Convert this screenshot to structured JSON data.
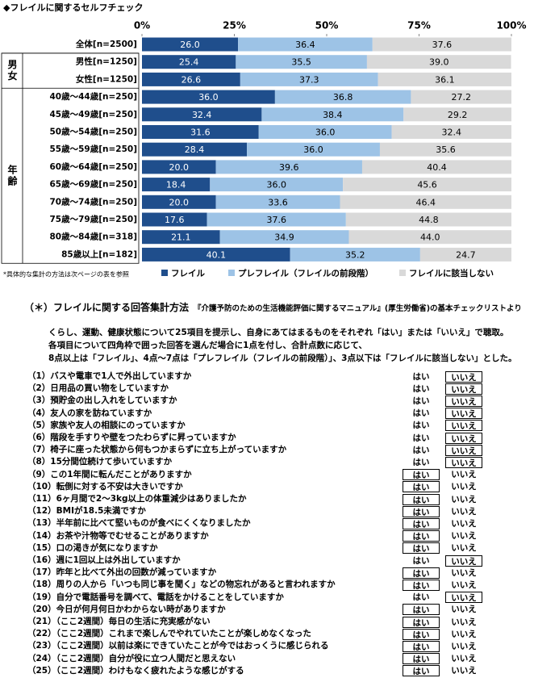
{
  "chart_data": {
    "type": "stacked-bar-horizontal",
    "title": "◆フレイルに関するセルフチェック",
    "categories": [
      "全体[n=2500]",
      "男性[n=1250]",
      "女性[n=1250]",
      "40歳～44歳[n=250]",
      "45歳～49歳[n=250]",
      "50歳～54歳[n=250]",
      "55歳～59歳[n=250]",
      "60歳～64歳[n=250]",
      "65歳～69歳[n=250]",
      "70歳～74歳[n=250]",
      "75歳～79歳[n=250]",
      "80歳～84歳[n=318]",
      "85歳以上[n=182]"
    ],
    "groups": [
      {
        "label": "男女",
        "first": 1,
        "last": 2
      },
      {
        "label": "年齢",
        "first": 3,
        "last": 12
      }
    ],
    "series": [
      {
        "name": "フレイル",
        "color": "#1f4e8c",
        "label_color": "#ffffff",
        "values": [
          26.0,
          25.4,
          26.6,
          36.0,
          32.4,
          31.6,
          28.4,
          20.0,
          18.4,
          20.0,
          17.6,
          21.1,
          40.1
        ],
        "value_labels": [
          "26.0",
          "25.4",
          "26.6",
          "36.0",
          "32.4",
          "31.6",
          "28.4",
          "20.0",
          "18.4",
          "20.0",
          "17.6",
          "21.1",
          "40.1"
        ]
      },
      {
        "name": "プレフレイル（フレイルの前段階）",
        "color": "#9dc3e6",
        "label_color": "#000000",
        "values": [
          36.4,
          35.5,
          37.3,
          36.8,
          38.4,
          36.0,
          36.0,
          39.6,
          36.0,
          33.6,
          37.6,
          34.9,
          35.2
        ],
        "value_labels": [
          "36.4",
          "35.5",
          "37.3",
          "36.8",
          "38.4",
          "36.0",
          "36.0",
          "39.6",
          "36.0",
          "33.6",
          "37.6",
          "34.9",
          "35.2"
        ]
      },
      {
        "name": "フレイルに該当しない",
        "color": "#d9d9d9",
        "label_color": "#000000",
        "values": [
          37.6,
          39.0,
          36.1,
          27.2,
          29.2,
          32.4,
          35.6,
          40.4,
          45.6,
          46.4,
          44.8,
          44.0,
          24.7
        ],
        "value_labels": [
          "37.6",
          "39.0",
          "36.1",
          "27.2",
          "29.2",
          "32.4",
          "35.6",
          "40.4",
          "45.6",
          "46.4",
          "44.8",
          "44.0",
          "24.7"
        ]
      }
    ],
    "xlim": [
      0,
      100
    ],
    "xticks": [
      {
        "value": 0,
        "label": "0%"
      },
      {
        "value": 25,
        "label": "25%"
      },
      {
        "value": 50,
        "label": "50%"
      },
      {
        "value": 75,
        "label": "75%"
      },
      {
        "value": 100,
        "label": "100%"
      }
    ],
    "footnote": "*具体的な集計の方法は次ページの表を参照"
  },
  "method": {
    "title": "（＊）フレイルに関する回答集計方法",
    "source": "『介護予防のための生活機能評価に関するマニュアル』(厚生労働省)の基本チェックリストより",
    "paragraph": [
      "くらし、運動、健康状態について25項目を提示し、自身にあてはまるものをそれぞれ「はい」または「いいえ」で聴取。",
      "各項目について四角枠で囲った回答を選んだ場合に1点を付し、合計点数に応じて、",
      "8点以上は「フレイル」、4点～7点は「プレフレイル（フレイルの前段階）」、3点以下は「フレイルに該当しない」とした。"
    ],
    "answers": [
      "はい",
      "いいえ"
    ],
    "items": [
      {
        "label": "（1）バスや電車で1人で外出していますか",
        "boxed": "いいえ"
      },
      {
        "label": "（2）日用品の買い物をしていますか",
        "boxed": "いいえ"
      },
      {
        "label": "（3）預貯金の出し入れをしていますか",
        "boxed": "いいえ"
      },
      {
        "label": "（4）友人の家を訪ねていますか",
        "boxed": "いいえ"
      },
      {
        "label": "（5）家族や友人の相談にのっていますか",
        "boxed": "いいえ"
      },
      {
        "label": "（6）階段を手すりや壁をつたわらずに昇っていますか",
        "boxed": "いいえ"
      },
      {
        "label": "（7）椅子に座った状態から何もつかまらずに立ち上がっていますか",
        "boxed": "いいえ"
      },
      {
        "label": "（8）15分間位続けて歩いていますか",
        "boxed": "いいえ"
      },
      {
        "label": "（9）この1年間に転んだことがありますか",
        "boxed": "はい"
      },
      {
        "label": "（10）転倒に対する不安は大きいですか",
        "boxed": "はい"
      },
      {
        "label": "（11）6ヶ月間で2～3kg以上の体重減少はありましたか",
        "boxed": "はい"
      },
      {
        "label": "（12）BMIが18.5未満ですか",
        "boxed": "はい"
      },
      {
        "label": "（13）半年前に比べて堅いものが食べにくくなりましたか",
        "boxed": "はい"
      },
      {
        "label": "（14）お茶や汁物等でむせることがありますか",
        "boxed": "はい"
      },
      {
        "label": "（15）口の渇きが気になりますか",
        "boxed": "はい"
      },
      {
        "label": "（16）週に1回以上は外出していますか",
        "boxed": "いいえ"
      },
      {
        "label": "（17）昨年と比べて外出の回数が減っていますか",
        "boxed": "はい"
      },
      {
        "label": "（18）周りの人から「いつも同じ事を聞く」などの物忘れがあると言われますか",
        "boxed": "はい"
      },
      {
        "label": "（19）自分で電話番号を調べて、電話をかけることをしていますか",
        "boxed": "いいえ"
      },
      {
        "label": "（20）今日が何月何日かわからない時がありますか",
        "boxed": "はい"
      },
      {
        "label": "（21）（ここ2週間）毎日の生活に充実感がない",
        "boxed": "はい"
      },
      {
        "label": "（22）（ここ2週間）これまで楽しんでやれていたことが楽しめなくなった",
        "boxed": "はい"
      },
      {
        "label": "（23）（ここ2週間）以前は楽にできていたことが今ではおっくうに感じられる",
        "boxed": "はい"
      },
      {
        "label": "（24）（ここ2週間）自分が役に立つ人間だと思えない",
        "boxed": "はい"
      },
      {
        "label": "（25）（ここ2週間）わけもなく疲れたような感じがする",
        "boxed": "はい"
      }
    ]
  }
}
